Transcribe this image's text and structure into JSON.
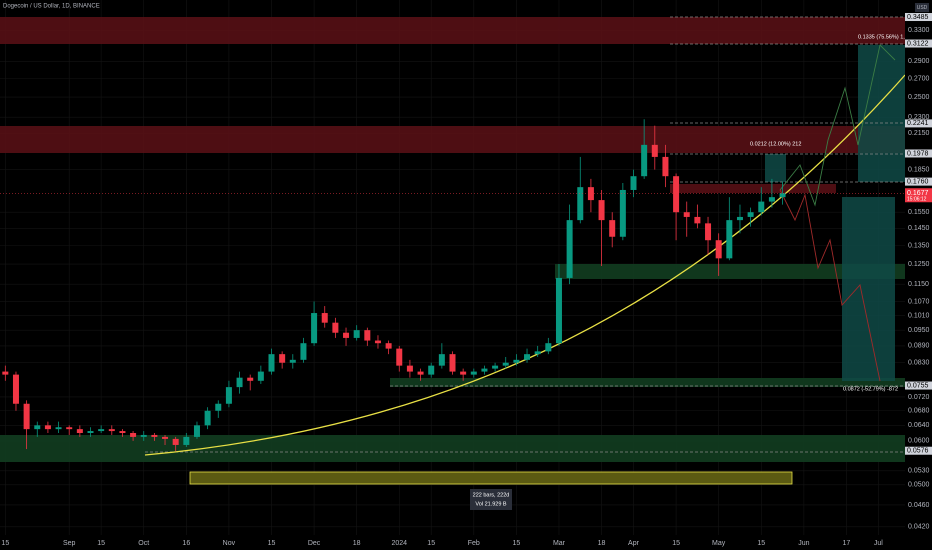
{
  "header": {
    "title": "Dogecoin / US Dollar, 1D, BINANCE",
    "currency": "USD"
  },
  "annotations": {
    "long_big": "0.1335 (75.56%) 1,",
    "long_small": "0.0212 (12.00%) 212",
    "short": "0.0872 (-52.79%) -872",
    "range_bars": "222 bars, 222d",
    "range_vol": "Vol 21.929 B",
    "countdown": "15:06:12"
  },
  "chart_data": {
    "type": "candlestick",
    "log_scale": true,
    "grid": true,
    "up_color": "#089981",
    "down_color": "#f23645",
    "ylim": [
      0.0406,
      0.374
    ],
    "yticks": [
      {
        "value": 0.33,
        "label": "0.3300"
      },
      {
        "value": 0.29,
        "label": "0.2900"
      },
      {
        "value": 0.27,
        "label": "0.2700"
      },
      {
        "value": 0.25,
        "label": "0.2500"
      },
      {
        "value": 0.23,
        "label": "0.2300"
      },
      {
        "value": 0.215,
        "label": "0.2150"
      },
      {
        "value": 0.185,
        "label": "0.1850"
      },
      {
        "value": 0.155,
        "label": "0.1550"
      },
      {
        "value": 0.145,
        "label": "0.1450"
      },
      {
        "value": 0.135,
        "label": "0.1350"
      },
      {
        "value": 0.125,
        "label": "0.1250"
      },
      {
        "value": 0.115,
        "label": "0.1150"
      },
      {
        "value": 0.107,
        "label": "0.1070"
      },
      {
        "value": 0.101,
        "label": "0.1010"
      },
      {
        "value": 0.095,
        "label": "0.0950"
      },
      {
        "value": 0.089,
        "label": "0.0890"
      },
      {
        "value": 0.083,
        "label": "0.0830"
      },
      {
        "value": 0.072,
        "label": "0.0720"
      },
      {
        "value": 0.068,
        "label": "0.0680"
      },
      {
        "value": 0.064,
        "label": "0.0640"
      },
      {
        "value": 0.06,
        "label": "0.0600"
      },
      {
        "value": 0.053,
        "label": "0.0530"
      },
      {
        "value": 0.05,
        "label": "0.0500"
      },
      {
        "value": 0.046,
        "label": "0.0460"
      },
      {
        "value": 0.042,
        "label": "0.0420"
      }
    ],
    "level_labels": [
      {
        "value": 0.3485,
        "label": "0.3485"
      },
      {
        "value": 0.3122,
        "label": "0.3122"
      },
      {
        "value": 0.2241,
        "label": "0.2241"
      },
      {
        "value": 0.1978,
        "label": "0.1978"
      },
      {
        "value": 0.176,
        "label": "0.1760"
      },
      {
        "value": 0.0755,
        "label": "0.0755"
      },
      {
        "value": 0.0576,
        "label": "0.0576"
      }
    ],
    "last_price": {
      "value": 0.1677,
      "label": "0.1677"
    },
    "categories": [
      "15",
      null,
      null,
      null,
      null,
      null,
      "Sep",
      null,
      null,
      "15",
      null,
      null,
      null,
      "Oct",
      null,
      null,
      null,
      "16",
      null,
      null,
      null,
      "Nov",
      null,
      null,
      null,
      "15",
      null,
      null,
      null,
      "Dec",
      null,
      null,
      null,
      "18",
      null,
      null,
      null,
      "2024",
      null,
      null,
      "15",
      null,
      null,
      null,
      "Feb",
      null,
      null,
      null,
      "15",
      null,
      null,
      null,
      "Mar",
      null,
      null,
      null,
      "18",
      null,
      null,
      "Apr",
      null,
      null,
      null,
      "15",
      null,
      null,
      null,
      "May",
      null,
      null,
      null,
      "15",
      null,
      null,
      null,
      "Jun",
      null,
      null,
      null,
      "17",
      null,
      null,
      "Jul",
      null,
      null
    ],
    "ohlc": [
      [
        0.08,
        0.082,
        0.077,
        0.079
      ],
      [
        0.079,
        0.08,
        0.068,
        0.07
      ],
      [
        0.07,
        0.071,
        0.058,
        0.063
      ],
      [
        0.063,
        0.065,
        0.061,
        0.064
      ],
      [
        0.064,
        0.065,
        0.062,
        0.063
      ],
      [
        0.063,
        0.065,
        0.062,
        0.0635
      ],
      [
        0.0635,
        0.064,
        0.0615,
        0.063
      ],
      [
        0.063,
        0.064,
        0.061,
        0.062
      ],
      [
        0.062,
        0.0635,
        0.061,
        0.0625
      ],
      [
        0.0625,
        0.064,
        0.062,
        0.063
      ],
      [
        0.063,
        0.064,
        0.0615,
        0.0625
      ],
      [
        0.0625,
        0.063,
        0.061,
        0.062
      ],
      [
        0.062,
        0.0625,
        0.06,
        0.061
      ],
      [
        0.061,
        0.0625,
        0.06,
        0.0615
      ],
      [
        0.0615,
        0.062,
        0.06,
        0.061
      ],
      [
        0.061,
        0.0615,
        0.059,
        0.0605
      ],
      [
        0.0605,
        0.061,
        0.0575,
        0.059
      ],
      [
        0.059,
        0.062,
        0.0585,
        0.061
      ],
      [
        0.061,
        0.065,
        0.0605,
        0.064
      ],
      [
        0.064,
        0.069,
        0.063,
        0.068
      ],
      [
        0.068,
        0.071,
        0.066,
        0.07
      ],
      [
        0.07,
        0.077,
        0.069,
        0.075
      ],
      [
        0.075,
        0.08,
        0.073,
        0.078
      ],
      [
        0.078,
        0.079,
        0.074,
        0.077
      ],
      [
        0.077,
        0.082,
        0.076,
        0.08
      ],
      [
        0.08,
        0.088,
        0.079,
        0.086
      ],
      [
        0.086,
        0.087,
        0.081,
        0.083
      ],
      [
        0.083,
        0.086,
        0.081,
        0.084
      ],
      [
        0.084,
        0.092,
        0.083,
        0.09
      ],
      [
        0.09,
        0.107,
        0.089,
        0.102
      ],
      [
        0.102,
        0.105,
        0.096,
        0.098
      ],
      [
        0.098,
        0.1,
        0.092,
        0.094
      ],
      [
        0.094,
        0.096,
        0.089,
        0.092
      ],
      [
        0.092,
        0.097,
        0.091,
        0.095
      ],
      [
        0.095,
        0.096,
        0.089,
        0.091
      ],
      [
        0.091,
        0.093,
        0.088,
        0.09
      ],
      [
        0.09,
        0.091,
        0.086,
        0.088
      ],
      [
        0.088,
        0.089,
        0.08,
        0.082
      ],
      [
        0.082,
        0.084,
        0.078,
        0.08
      ],
      [
        0.08,
        0.081,
        0.077,
        0.079
      ],
      [
        0.079,
        0.083,
        0.078,
        0.082
      ],
      [
        0.082,
        0.09,
        0.081,
        0.086
      ],
      [
        0.086,
        0.087,
        0.079,
        0.08
      ],
      [
        0.08,
        0.081,
        0.077,
        0.079
      ],
      [
        0.079,
        0.081,
        0.078,
        0.08
      ],
      [
        0.08,
        0.082,
        0.079,
        0.081
      ],
      [
        0.081,
        0.083,
        0.08,
        0.082
      ],
      [
        0.082,
        0.085,
        0.081,
        0.083
      ],
      [
        0.083,
        0.086,
        0.082,
        0.084
      ],
      [
        0.084,
        0.088,
        0.083,
        0.086
      ],
      [
        0.086,
        0.089,
        0.085,
        0.087
      ],
      [
        0.087,
        0.092,
        0.086,
        0.09
      ],
      [
        0.09,
        0.125,
        0.089,
        0.118
      ],
      [
        0.118,
        0.16,
        0.115,
        0.15
      ],
      [
        0.15,
        0.195,
        0.148,
        0.172
      ],
      [
        0.172,
        0.178,
        0.155,
        0.163
      ],
      [
        0.163,
        0.17,
        0.124,
        0.15
      ],
      [
        0.15,
        0.155,
        0.134,
        0.14
      ],
      [
        0.14,
        0.175,
        0.138,
        0.17
      ],
      [
        0.17,
        0.185,
        0.165,
        0.18
      ],
      [
        0.18,
        0.228,
        0.178,
        0.205
      ],
      [
        0.205,
        0.222,
        0.185,
        0.195
      ],
      [
        0.195,
        0.205,
        0.172,
        0.18
      ],
      [
        0.18,
        0.182,
        0.138,
        0.155
      ],
      [
        0.155,
        0.162,
        0.14,
        0.152
      ],
      [
        0.152,
        0.16,
        0.145,
        0.148
      ],
      [
        0.148,
        0.152,
        0.13,
        0.138
      ],
      [
        0.138,
        0.142,
        0.119,
        0.128
      ],
      [
        0.128,
        0.165,
        0.127,
        0.15
      ],
      [
        0.15,
        0.16,
        0.142,
        0.152
      ],
      [
        0.152,
        0.158,
        0.146,
        0.155
      ],
      [
        0.155,
        0.172,
        0.153,
        0.162
      ],
      [
        0.162,
        0.178,
        0.158,
        0.165
      ],
      [
        0.165,
        0.176,
        0.16,
        0.1677
      ],
      null,
      null,
      null,
      null,
      null,
      null,
      null,
      null,
      null,
      null,
      null
    ]
  }
}
